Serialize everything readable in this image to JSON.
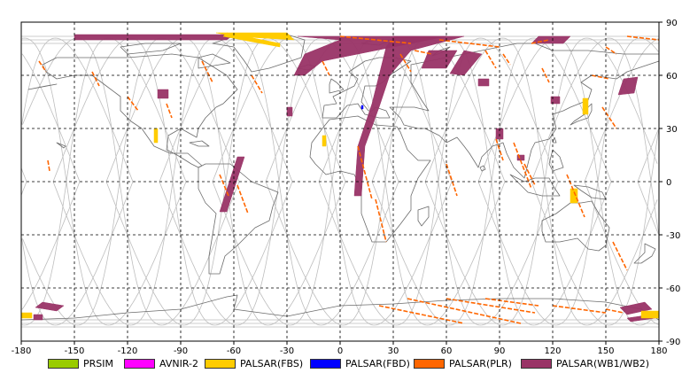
{
  "colors": {
    "background": "#ffffff",
    "gridline": "#000000",
    "orbit_track": "#bdbdbd",
    "coastline": "#6b6b6b",
    "prism": "#99cc00",
    "avnir2": "#ff00ff",
    "palsar_fbs": "#ffcc00",
    "palsar_fbd": "#0000ff",
    "palsar_plr": "#ff6600",
    "palsar_wb": "#993366"
  },
  "legend": [
    {
      "label": "PRSIM",
      "color": "#99cc00"
    },
    {
      "label": "AVNIR-2",
      "color": "#ff00ff"
    },
    {
      "label": "PALSAR(FBS)",
      "color": "#ffcc00"
    },
    {
      "label": "PALSAR(FBD)",
      "color": "#0000ff"
    },
    {
      "label": "PALSAR(PLR)",
      "color": "#ff6600"
    },
    {
      "label": "PALSAR(WB1/WB2)",
      "color": "#993366"
    }
  ],
  "chart_data": {
    "type": "map",
    "projection": "equirectangular",
    "xlim": [
      -180,
      180
    ],
    "ylim": [
      -90,
      90
    ],
    "x_ticks": [
      -180,
      -150,
      -120,
      -90,
      -60,
      -30,
      0,
      30,
      60,
      90,
      120,
      150,
      180
    ],
    "y_ticks": [
      90,
      60,
      30,
      0,
      -30,
      -60,
      -90
    ],
    "grid": true,
    "grid_style": "dashed",
    "orbit_tracks": {
      "count": 12,
      "max_latitude": 81,
      "start_longitudes": [
        -162,
        -132,
        -102,
        -72,
        -42,
        -12,
        18,
        48,
        78,
        108,
        138,
        168
      ]
    },
    "swaths": {
      "palsar_wb": [
        {
          "pts": [
            [
              -168,
              -68
            ],
            [
              -156,
              -70
            ],
            [
              -160,
              -73
            ],
            [
              -172,
              -71
            ]
          ]
        },
        {
          "pts": [
            [
              -173,
              -75
            ],
            [
              -168,
              -75
            ],
            [
              -168,
              -78
            ],
            [
              -173,
              -78
            ]
          ]
        },
        {
          "pts": [
            [
              -150,
              83
            ],
            [
              -60,
              83
            ],
            [
              -64,
              80
            ],
            [
              -150,
              80
            ]
          ]
        },
        {
          "pts": [
            [
              -103,
              52
            ],
            [
              -97,
              52
            ],
            [
              -97,
              47
            ],
            [
              -103,
              47
            ]
          ]
        },
        {
          "pts": [
            [
              -30,
              42
            ],
            [
              -27,
              42
            ],
            [
              -27,
              37
            ],
            [
              -30,
              37
            ]
          ]
        },
        {
          "pts": [
            [
              -58,
              14
            ],
            [
              -54,
              14
            ],
            [
              -64,
              -17
            ],
            [
              -68,
              -17
            ]
          ]
        },
        {
          "pts": [
            [
              -24,
              82
            ],
            [
              60,
              82
            ],
            [
              20,
              74
            ],
            [
              -10,
              68
            ],
            [
              -20,
              60
            ],
            [
              -26,
              60
            ],
            [
              -20,
              72
            ],
            [
              0,
              80
            ]
          ]
        },
        {
          "pts": [
            [
              30,
              82
            ],
            [
              70,
              82
            ],
            [
              40,
              74
            ],
            [
              28,
              60
            ],
            [
              22,
              42
            ],
            [
              14,
              20
            ],
            [
              12,
              -8
            ],
            [
              8,
              -8
            ],
            [
              10,
              20
            ],
            [
              18,
              44
            ],
            [
              22,
              60
            ],
            [
              26,
              76
            ]
          ]
        },
        {
          "pts": [
            [
              50,
              74
            ],
            [
              66,
              74
            ],
            [
              60,
              64
            ],
            [
              46,
              64
            ]
          ]
        },
        {
          "pts": [
            [
              70,
              74
            ],
            [
              80,
              72
            ],
            [
              70,
              60
            ],
            [
              62,
              61
            ]
          ]
        },
        {
          "pts": [
            [
              78,
              58
            ],
            [
              84,
              58
            ],
            [
              84,
              54
            ],
            [
              78,
              54
            ]
          ]
        },
        {
          "pts": [
            [
              88,
              30
            ],
            [
              92,
              30
            ],
            [
              92,
              24
            ],
            [
              88,
              24
            ]
          ]
        },
        {
          "pts": [
            [
              100,
              15
            ],
            [
              104,
              15
            ],
            [
              104,
              12
            ],
            [
              100,
              12
            ]
          ]
        },
        {
          "pts": [
            [
              119,
              48
            ],
            [
              124,
              48
            ],
            [
              124,
              44
            ],
            [
              119,
              44
            ]
          ]
        },
        {
          "pts": [
            [
              130,
              82
            ],
            [
              112,
              82
            ],
            [
              108,
              78
            ],
            [
              126,
              78
            ]
          ]
        },
        {
          "pts": [
            [
              160,
              58
            ],
            [
              168,
              59
            ],
            [
              166,
              50
            ],
            [
              157,
              49
            ]
          ]
        },
        {
          "pts": [
            [
              158,
              -71
            ],
            [
              172,
              -68
            ],
            [
              176,
              -72
            ],
            [
              162,
              -75
            ]
          ]
        },
        {
          "pts": [
            [
              162,
              -77
            ],
            [
              176,
              -75
            ],
            [
              178,
              -77
            ],
            [
              164,
              -79
            ]
          ]
        }
      ],
      "palsar_fbs": [
        {
          "pts": [
            [
              -180,
              -74
            ],
            [
              -174,
              -74
            ],
            [
              -174,
              -77
            ],
            [
              -180,
              -77
            ]
          ]
        },
        {
          "pts": [
            [
              -70,
              84
            ],
            [
              -30,
              84
            ],
            [
              -26,
              80
            ],
            [
              -60,
              82
            ]
          ]
        },
        {
          "pts": [
            [
              -64,
              84
            ],
            [
              -34,
              78
            ],
            [
              -34,
              76
            ],
            [
              -66,
              82
            ]
          ]
        },
        {
          "pts": [
            [
              -105,
              30
            ],
            [
              -103,
              30
            ],
            [
              -103,
              22
            ],
            [
              -105,
              22
            ]
          ]
        },
        {
          "pts": [
            [
              -10,
              26
            ],
            [
              -8,
              26
            ],
            [
              -8,
              20
            ],
            [
              -10,
              20
            ]
          ]
        },
        {
          "pts": [
            [
              137,
              47
            ],
            [
              140,
              47
            ],
            [
              140,
              38
            ],
            [
              137,
              38
            ]
          ]
        },
        {
          "pts": [
            [
              130,
              -4
            ],
            [
              134,
              -4
            ],
            [
              134,
              -12
            ],
            [
              130,
              -12
            ]
          ]
        },
        {
          "pts": [
            [
              170,
              -73
            ],
            [
              180,
              -73
            ],
            [
              180,
              -77
            ],
            [
              170,
              -77
            ]
          ]
        }
      ],
      "palsar_fbd": [
        {
          "pts": [
            [
              12,
              43
            ],
            [
              13,
              43
            ],
            [
              13,
              41
            ],
            [
              12,
              41
            ]
          ]
        }
      ]
    },
    "plr_lines": [
      [
        [
          -170,
          68
        ],
        [
          -166,
          62
        ]
      ],
      [
        [
          -165,
          12
        ],
        [
          -164,
          6
        ]
      ],
      [
        [
          -140,
          62
        ],
        [
          -136,
          54
        ]
      ],
      [
        [
          -120,
          48
        ],
        [
          -114,
          40
        ]
      ],
      [
        [
          -98,
          44
        ],
        [
          -95,
          36
        ]
      ],
      [
        [
          -78,
          68
        ],
        [
          -72,
          56
        ]
      ],
      [
        [
          -68,
          4
        ],
        [
          -63,
          -8
        ]
      ],
      [
        [
          -50,
          60
        ],
        [
          -44,
          50
        ]
      ],
      [
        [
          -58,
          -2
        ],
        [
          -52,
          -18
        ]
      ],
      [
        [
          -10,
          68
        ],
        [
          -6,
          60
        ]
      ],
      [
        [
          0,
          82
        ],
        [
          40,
          78
        ]
      ],
      [
        [
          10,
          20
        ],
        [
          18,
          -10
        ]
      ],
      [
        [
          20,
          -10
        ],
        [
          26,
          -34
        ]
      ],
      [
        [
          34,
          72
        ],
        [
          40,
          62
        ]
      ],
      [
        [
          42,
          74
        ],
        [
          52,
          72
        ]
      ],
      [
        [
          56,
          80
        ],
        [
          90,
          76
        ]
      ],
      [
        [
          60,
          10
        ],
        [
          66,
          -8
        ]
      ],
      [
        [
          82,
          74
        ],
        [
          88,
          64
        ]
      ],
      [
        [
          92,
          72
        ],
        [
          96,
          66
        ]
      ],
      [
        [
          88,
          24
        ],
        [
          92,
          12
        ]
      ],
      [
        [
          98,
          22
        ],
        [
          108,
          -4
        ]
      ],
      [
        [
          104,
          10
        ],
        [
          110,
          -2
        ]
      ],
      [
        [
          108,
          78
        ],
        [
          118,
          80
        ]
      ],
      [
        [
          114,
          64
        ],
        [
          118,
          56
        ]
      ],
      [
        [
          128,
          4
        ],
        [
          138,
          -20
        ]
      ],
      [
        [
          142,
          60
        ],
        [
          152,
          58
        ]
      ],
      [
        [
          148,
          42
        ],
        [
          156,
          30
        ]
      ],
      [
        [
          150,
          76
        ],
        [
          156,
          72
        ]
      ],
      [
        [
          154,
          -34
        ],
        [
          162,
          -50
        ]
      ],
      [
        [
          162,
          82
        ],
        [
          180,
          80
        ]
      ],
      [
        [
          22,
          -70
        ],
        [
          70,
          -80
        ]
      ],
      [
        [
          38,
          -66
        ],
        [
          102,
          -80
        ]
      ],
      [
        [
          60,
          -66
        ],
        [
          110,
          -74
        ]
      ],
      [
        [
          82,
          -66
        ],
        [
          112,
          -70
        ]
      ],
      [
        [
          120,
          -70
        ],
        [
          150,
          -74
        ]
      ],
      [
        [
          150,
          -72
        ],
        [
          160,
          -74
        ]
      ]
    ]
  }
}
